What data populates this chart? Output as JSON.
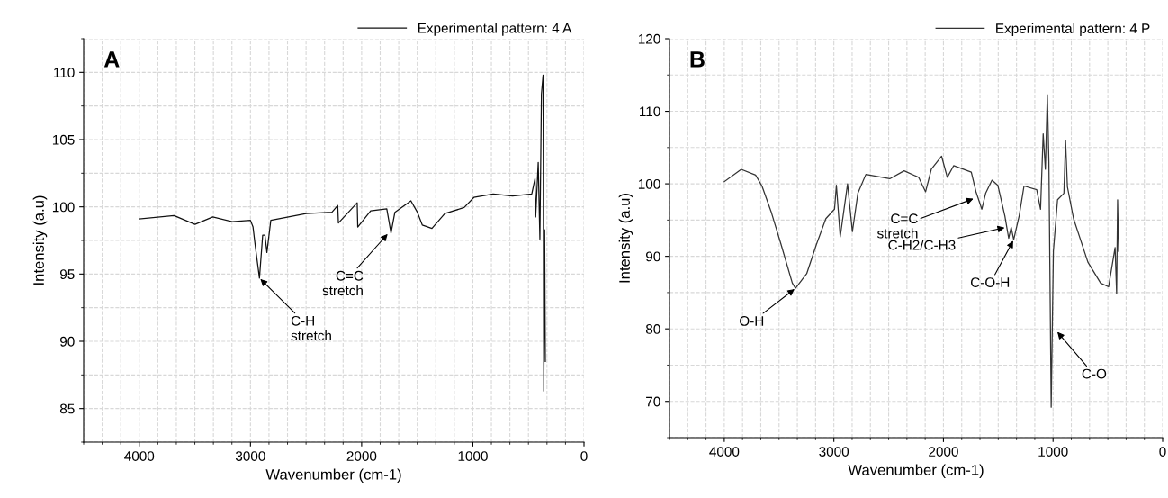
{
  "chart_data": [
    {
      "type": "line",
      "title": "A",
      "xlabel": "Wavenumber (cm-1)",
      "ylabel": "Intensity (a.u)",
      "xlim": [
        4500,
        0
      ],
      "ylim": [
        82.5,
        112.5
      ],
      "xticks": [
        4000,
        3000,
        2000,
        1000,
        0
      ],
      "yticks": [
        85,
        90,
        95,
        100,
        105,
        110
      ],
      "grid": true,
      "legend": "top right",
      "series": [
        {
          "name": "Experimental pattern: 4 A",
          "color": "#111111",
          "x": [
            4000,
            3687,
            3499,
            3339,
            3165,
            3000,
            2977,
            2957,
            2919,
            2890,
            2870,
            2852,
            2817,
            2499,
            2267,
            2215,
            2209,
            2040,
            2035,
            1919,
            1774,
            1736,
            1701,
            1557,
            1499,
            1455,
            1368,
            1252,
            1078,
            991,
            817,
            643,
            470,
            441,
            435,
            412,
            397,
            383,
            368,
            362,
            354,
            348
          ],
          "values": [
            99.1,
            99.35,
            98.7,
            99.25,
            98.9,
            99.0,
            98.5,
            97.1,
            94.7,
            97.9,
            97.9,
            96.6,
            99.0,
            99.5,
            99.6,
            100.1,
            98.8,
            100.3,
            98.5,
            99.7,
            99.85,
            98.05,
            99.6,
            100.45,
            99.6,
            98.65,
            98.4,
            99.5,
            99.95,
            100.7,
            100.95,
            100.8,
            100.95,
            102.1,
            99.25,
            103.3,
            97.6,
            108.4,
            109.8,
            86.3,
            98.3,
            88.5
          ]
        }
      ],
      "annotations": [
        {
          "text": "C-H\nstretch",
          "x": 2919,
          "y": 94.7
        },
        {
          "text": "C=C\nstretch",
          "x": 1759,
          "y": 98.05
        }
      ]
    },
    {
      "type": "line",
      "title": "B",
      "xlabel": "Wavenumber (cm-1)",
      "ylabel": "Intensity (a.u)",
      "xlim": [
        4500,
        0
      ],
      "ylim": [
        65,
        120
      ],
      "xticks": [
        4000,
        3000,
        2000,
        1000,
        0
      ],
      "yticks": [
        70,
        80,
        90,
        100,
        110,
        120
      ],
      "grid": true,
      "legend": "top right",
      "series": [
        {
          "name": "Experimental pattern: 4 P",
          "color": "#333333",
          "x": [
            4000,
            3845,
            3714,
            3656,
            3569,
            3481,
            3379,
            3350,
            3248,
            3160,
            3073,
            2994,
            2977,
            2942,
            2875,
            2831,
            2781,
            2708,
            2490,
            2359,
            2227,
            2163,
            2111,
            2017,
            1965,
            1907,
            1746,
            1703,
            1650,
            1615,
            1557,
            1504,
            1440,
            1405,
            1382,
            1359,
            1309,
            1265,
            1149,
            1114,
            1090,
            1070,
            1052,
            1038,
            1017,
            997,
            959,
            901,
            886,
            869,
            813,
            682,
            566,
            493,
            434,
            420,
            411,
            402
          ],
          "values": [
            100.3,
            102.0,
            101.2,
            99.7,
            96.0,
            91.6,
            86.3,
            85.6,
            87.6,
            91.6,
            95.2,
            96.5,
            99.8,
            92.7,
            100.0,
            93.4,
            98.7,
            101.3,
            100.7,
            101.8,
            100.9,
            98.9,
            102.0,
            103.8,
            100.9,
            102.5,
            101.6,
            98.9,
            96.5,
            98.7,
            100.5,
            99.8,
            95.6,
            92.5,
            94.0,
            92.3,
            95.6,
            99.7,
            99.2,
            96.5,
            106.9,
            102.0,
            112.3,
            103.1,
            69.2,
            90.7,
            97.8,
            98.7,
            106.0,
            99.6,
            95.2,
            89.2,
            86.3,
            85.8,
            91.2,
            84.9,
            97.8,
            90.7
          ]
        }
      ],
      "annotations": [
        {
          "text": "O-H",
          "x": 3350,
          "y": 85.6
        },
        {
          "text": "C=C\nstretch",
          "x": 1717,
          "y": 98.0
        },
        {
          "text": "C-H2/C-H3",
          "x": 1431,
          "y": 94.0
        },
        {
          "text": "C-O-H",
          "x": 1359,
          "y": 92.3
        },
        {
          "text": "C-O",
          "x": 968,
          "y": 79.7
        }
      ]
    }
  ]
}
